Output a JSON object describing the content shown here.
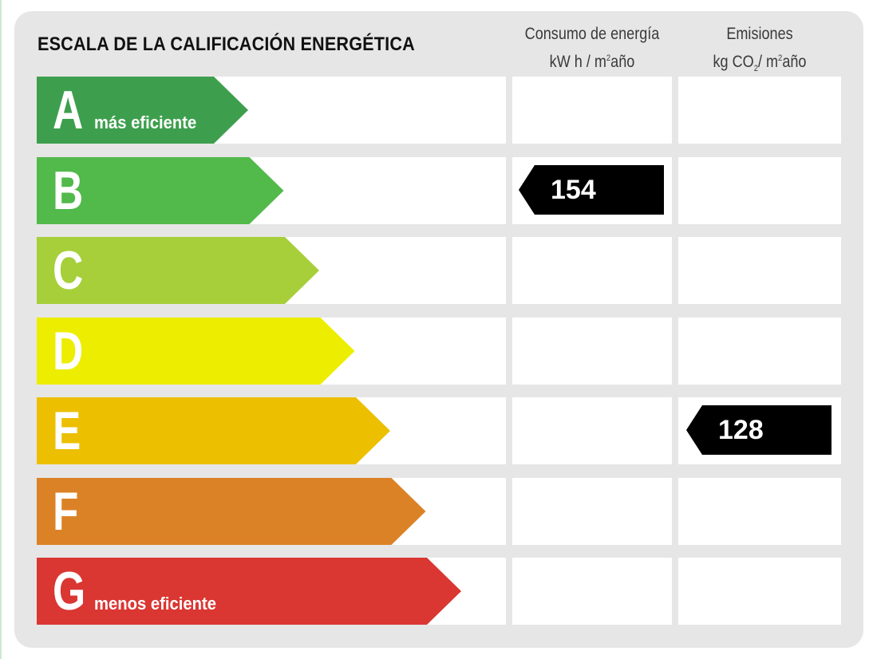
{
  "title": "ESCALA DE LA CALIFICACIÓN ENERGÉTICA",
  "columns": {
    "energy": {
      "line1": "Consumo de energía",
      "line2_pre": "kW h / m",
      "line2_sup": "2",
      "line2_post": "año"
    },
    "emissions": {
      "line1": "Emisiones",
      "line2_pre": "kg CO",
      "line2_sub": "2",
      "line2_mid": "/ m",
      "line2_sup": "2",
      "line2_post": "año"
    }
  },
  "ratings": [
    {
      "letter": "A",
      "sublabel": "más eficiente",
      "color": "#3d9f4d"
    },
    {
      "letter": "B",
      "sublabel": "",
      "color": "#52b94b"
    },
    {
      "letter": "C",
      "sublabel": "",
      "color": "#a6cf3a"
    },
    {
      "letter": "D",
      "sublabel": "",
      "color": "#eded00"
    },
    {
      "letter": "E",
      "sublabel": "",
      "color": "#ecbf00"
    },
    {
      "letter": "F",
      "sublabel": "",
      "color": "#dc8226"
    },
    {
      "letter": "G",
      "sublabel": "menos eficiente",
      "color": "#da3632"
    }
  ],
  "energy_rating": {
    "letter": "B",
    "value": "154"
  },
  "emissions_rating": {
    "letter": "E",
    "value": "128"
  }
}
